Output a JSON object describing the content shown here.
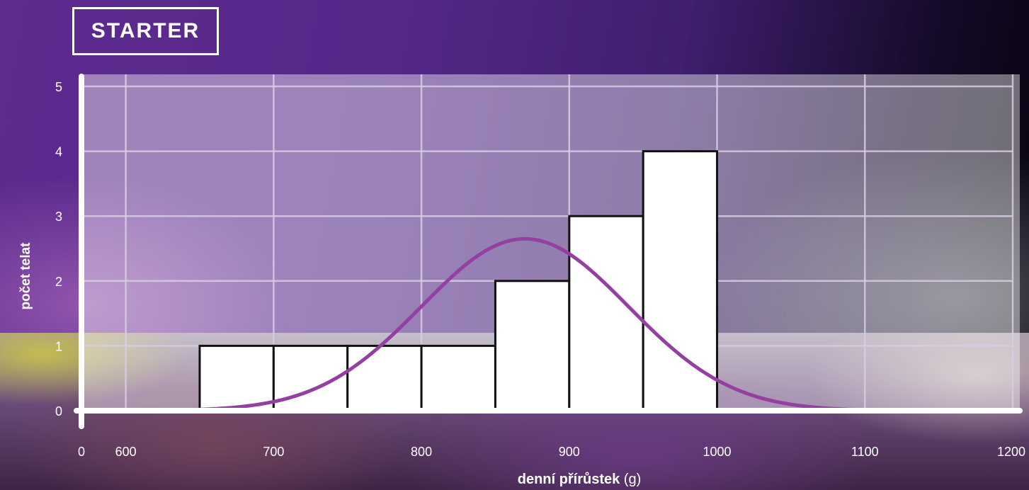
{
  "panel_label": "STARTER",
  "chart_data": {
    "type": "bar",
    "title": "",
    "xlabel_bold": "denní přírůstek",
    "xlabel_unit": "(g)",
    "ylabel": "počet telat",
    "x_tick_labels": [
      "0",
      "600",
      "700",
      "800",
      "900",
      "1000",
      "1100",
      "1200"
    ],
    "x_grid_values": [
      600,
      700,
      800,
      900,
      1000,
      1100,
      1200
    ],
    "y_ticks": [
      0,
      1,
      2,
      3,
      4,
      5
    ],
    "xlim": [
      570,
      1200
    ],
    "ylim": [
      0,
      5
    ],
    "grid": true,
    "bins": [
      {
        "from": 650,
        "to": 700,
        "count": 1
      },
      {
        "from": 700,
        "to": 750,
        "count": 1
      },
      {
        "from": 750,
        "to": 800,
        "count": 1
      },
      {
        "from": 800,
        "to": 850,
        "count": 1
      },
      {
        "from": 850,
        "to": 900,
        "count": 2
      },
      {
        "from": 900,
        "to": 950,
        "count": 3
      },
      {
        "from": 950,
        "to": 1000,
        "count": 4
      }
    ],
    "normal_curve": {
      "mean": 870,
      "sd": 70,
      "peak_count": 2.65,
      "range": [
        600,
        1130
      ]
    },
    "colors": {
      "bar_fill": "#ffffff",
      "bar_edge": "#111111",
      "curve": "#9440a0",
      "axis": "#ffffff",
      "grid": "#d9cce3",
      "plot_overlay": "rgba(255,255,255,0.42)"
    }
  }
}
